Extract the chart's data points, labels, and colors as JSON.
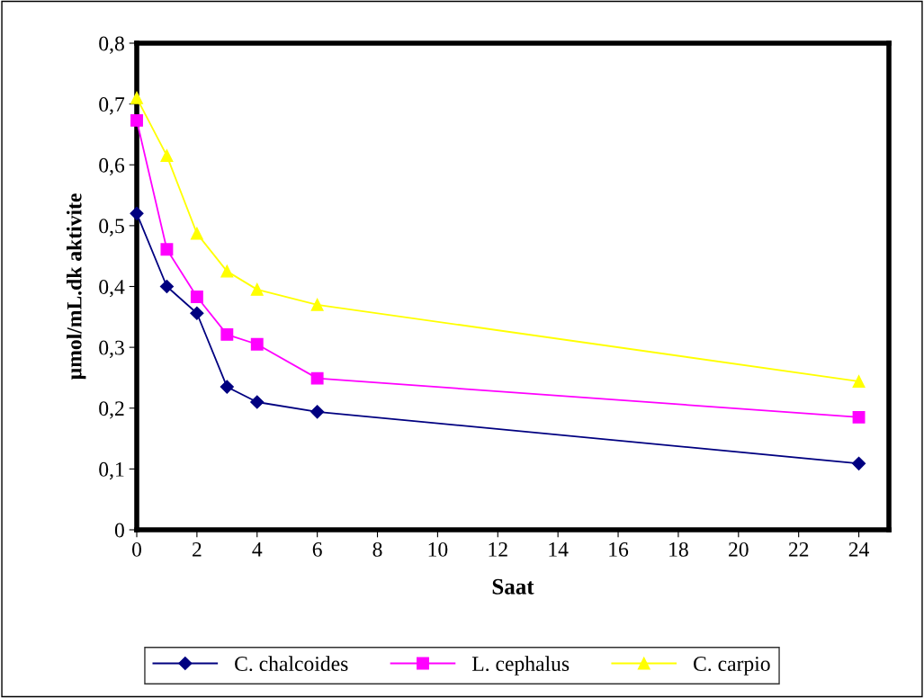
{
  "chart_data": {
    "type": "line",
    "xlabel": "Saat",
    "ylabel": "µmol/mL.dk aktivite",
    "x": [
      0,
      1,
      2,
      3,
      4,
      6,
      24
    ],
    "series": [
      {
        "name": "C. chalcoides",
        "color": "#000080",
        "marker": "diamond",
        "values": [
          0.52,
          0.4,
          0.356,
          0.235,
          0.21,
          0.194,
          0.109
        ]
      },
      {
        "name": "L. cephalus",
        "color": "#ff00ff",
        "marker": "square",
        "values": [
          0.673,
          0.461,
          0.383,
          0.321,
          0.305,
          0.249,
          0.185
        ]
      },
      {
        "name": "C. carpio",
        "color": "#ffff00",
        "marker": "triangle",
        "values": [
          0.71,
          0.615,
          0.487,
          0.425,
          0.395,
          0.37,
          0.244
        ]
      }
    ],
    "xlim": [
      0,
      25
    ],
    "xticks": [
      0,
      2,
      4,
      6,
      8,
      10,
      12,
      14,
      16,
      18,
      20,
      22,
      24
    ],
    "ylim": [
      0,
      0.8
    ],
    "yticks": [
      0,
      {
        "value": 0.1,
        "label": "0,1"
      },
      {
        "value": 0.2,
        "label": "0,2"
      },
      {
        "value": 0.3,
        "label": "0,3"
      },
      {
        "value": 0.4,
        "label": "0,4"
      },
      {
        "value": 0.5,
        "label": "0,5"
      },
      {
        "value": 0.6,
        "label": "0,6"
      },
      {
        "value": 0.7,
        "label": "0,7"
      },
      {
        "value": 0.8,
        "label": "0,8"
      }
    ],
    "grid": false,
    "legend": "bottom",
    "line_style": "solid"
  }
}
